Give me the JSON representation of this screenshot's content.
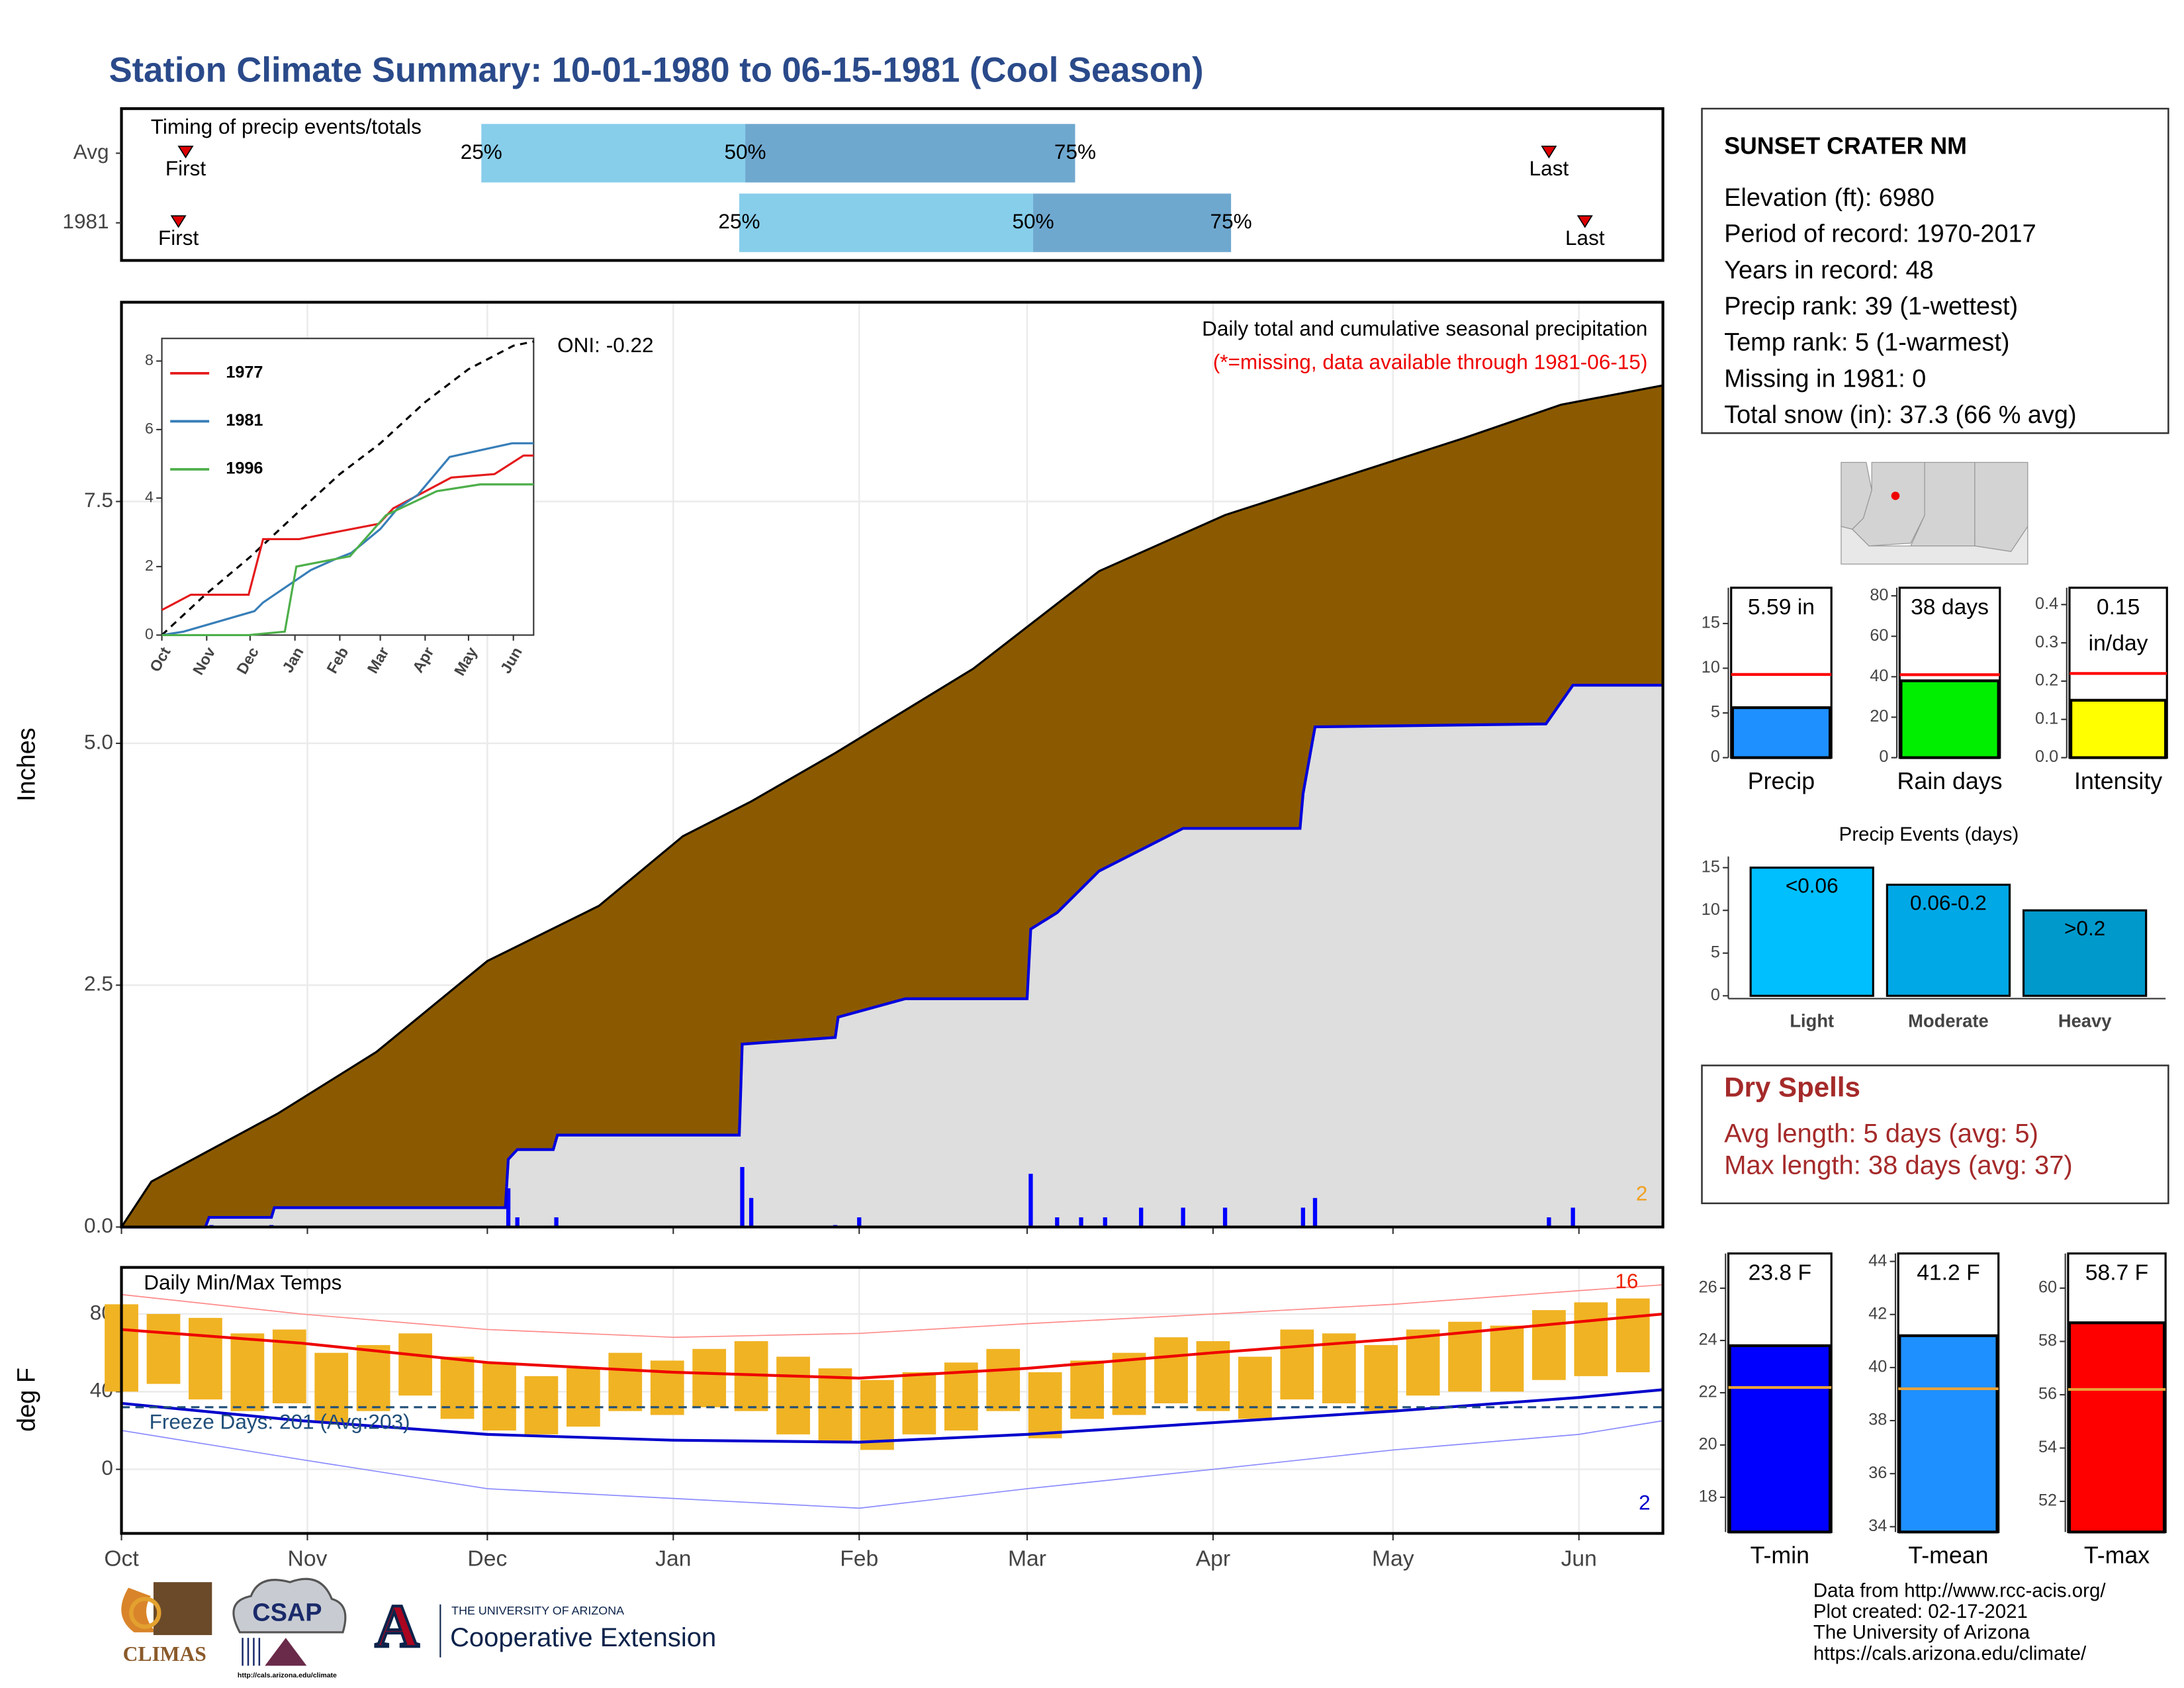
{
  "title": "Station Climate Summary: 10-01-1980 to 06-15-1981 (Cool Season)",
  "chart_data": [
    {
      "type": "timeline",
      "title": "Timing of precip events/totals",
      "categories": [
        "Avg",
        "1981"
      ],
      "xlim": [
        0,
        257
      ],
      "rows": [
        {
          "first": 10.7,
          "q25": 60,
          "q50": 104,
          "q75": 159,
          "last": 238
        },
        {
          "first": 9.5,
          "q25": 103,
          "q50": 152,
          "q75": 185,
          "last": 244
        }
      ],
      "quartile_labels": [
        "25%",
        "50%",
        "75%"
      ],
      "first_label": "First",
      "last_label": "Last",
      "colors": [
        "#87ceeb",
        "#6fa8cf"
      ],
      "marker_color": "#dd0000"
    },
    {
      "type": "area",
      "title": "Daily total and cumulative seasonal precipitation",
      "subtitle": "(*=missing, data available through 1981-06-15)",
      "annotation": "ONI: -0.22",
      "corner_note": "2",
      "y_label": "Inches",
      "xlim": [
        0,
        257
      ],
      "ylim": [
        0,
        9.56
      ],
      "yticks": [
        {
          "value": 0,
          "label": "0.0"
        },
        2.5,
        {
          "value": 5,
          "label": "5.0"
        },
        7.5
      ],
      "grid": true,
      "average": {
        "color": "#8b5a00",
        "x": [
          0,
          5,
          26,
          42.5,
          61,
          79.6,
          93.6,
          105,
          119,
          142,
          163,
          184,
          207,
          223.6,
          240,
          257
        ],
        "values": [
          0,
          0.47,
          1.17,
          1.81,
          2.75,
          3.32,
          4.04,
          4.4,
          4.9,
          5.77,
          6.78,
          7.36,
          7.82,
          8.15,
          8.5,
          8.7
        ]
      },
      "year": {
        "color": "#0000dd",
        "fill": "#dedede",
        "x": [
          0,
          14,
          14.6,
          25,
          25.5,
          64,
          64.5,
          66,
          72,
          72.7,
          103,
          103.5,
          119,
          119.5,
          130.7,
          151,
          151.6,
          156,
          163,
          170,
          177,
          196.5,
          197,
          199,
          237.5,
          242,
          257
        ],
        "values": [
          0,
          0,
          0.1,
          0.1,
          0.2,
          0.2,
          0.7,
          0.8,
          0.8,
          0.95,
          0.95,
          1.89,
          1.96,
          2.17,
          2.36,
          2.36,
          3.08,
          3.25,
          3.68,
          3.9,
          4.12,
          4.12,
          4.48,
          5.17,
          5.2,
          5.6,
          5.6
        ]
      },
      "daily": {
        "color": "#0000ff",
        "x": [
          15,
          25,
          64.5,
          66,
          72.5,
          103.5,
          105,
          119,
          123,
          151.6,
          156,
          160,
          164,
          170,
          177,
          184,
          197,
          199,
          238,
          242
        ],
        "values": [
          0.02,
          0.02,
          0.4,
          0.1,
          0.1,
          0.62,
          0.3,
          0.02,
          0.1,
          0.55,
          0.1,
          0.1,
          0.1,
          0.2,
          0.2,
          0.2,
          0.2,
          0.3,
          0.1,
          0.2
        ]
      }
    },
    {
      "type": "line",
      "xlim": [
        0,
        257
      ],
      "ylim": [
        0,
        8.66
      ],
      "yticks": [
        0,
        2,
        4,
        6,
        8
      ],
      "xticks": [
        {
          "value": 0,
          "label": "Oct"
        },
        {
          "value": 31,
          "label": "Nov"
        },
        {
          "value": 61,
          "label": "Dec"
        },
        {
          "value": 92,
          "label": "Jan"
        },
        {
          "value": 123,
          "label": "Feb"
        },
        {
          "value": 151,
          "label": "Mar"
        },
        {
          "value": 182,
          "label": "Apr"
        },
        {
          "value": 212,
          "label": "May"
        },
        {
          "value": 243,
          "label": "Jun"
        }
      ],
      "series": [
        {
          "name": "1977",
          "color": "#e41a1c",
          "x": [
            0,
            20,
            60,
            70,
            95,
            150,
            160,
            200,
            230,
            250,
            257
          ],
          "values": [
            0.73,
            1.18,
            1.18,
            2.8,
            2.8,
            3.25,
            3.7,
            4.6,
            4.7,
            5.24,
            5.24
          ]
        },
        {
          "name": "1981",
          "color": "#377eb8",
          "x": [
            0,
            15,
            64,
            70,
            103,
            119,
            131,
            151,
            163,
            177,
            199,
            242,
            257
          ],
          "values": [
            0,
            0.1,
            0.7,
            0.95,
            1.9,
            2.2,
            2.4,
            3.1,
            3.7,
            4.1,
            5.2,
            5.6,
            5.6
          ]
        },
        {
          "name": "1996",
          "color": "#4daf4a",
          "x": [
            0,
            60,
            85,
            90,
            93,
            130,
            155,
            190,
            220,
            257
          ],
          "values": [
            0,
            0,
            0.1,
            1.3,
            2.0,
            2.3,
            3.5,
            4.2,
            4.4,
            4.4
          ]
        }
      ],
      "average": {
        "color": "#000000",
        "x": [
          0,
          30,
          61,
          92,
          123,
          151,
          182,
          212,
          243,
          257
        ],
        "values": [
          0,
          1.18,
          2.28,
          3.5,
          4.7,
          5.6,
          6.8,
          7.76,
          8.45,
          8.57
        ]
      }
    },
    {
      "type": "temperature",
      "title": "Daily Min/Max Temps",
      "y_label": "deg F",
      "freeze_label": "Freeze Days: 201 (Avg:203)",
      "freeze_line": 32,
      "high_note": "16",
      "low_note": "2",
      "xlim": [
        0,
        257
      ],
      "ylim": [
        -33,
        104
      ],
      "yticks": [
        0,
        40,
        80
      ],
      "grid": true,
      "xticks": [
        {
          "value": 0,
          "label": "Oct"
        },
        {
          "value": 31,
          "label": "Nov"
        },
        {
          "value": 61,
          "label": "Dec"
        },
        {
          "value": 92,
          "label": "Jan"
        },
        {
          "value": 123,
          "label": "Feb"
        },
        {
          "value": 151,
          "label": "Mar"
        },
        {
          "value": 182,
          "label": "Apr"
        },
        {
          "value": 212,
          "label": "May"
        },
        {
          "value": 243,
          "label": "Jun"
        }
      ],
      "daily": {
        "color": "#f0b323",
        "x": [
          0,
          7,
          14,
          21,
          28,
          35,
          42,
          49,
          56,
          63,
          70,
          77,
          84,
          91,
          98,
          105,
          112,
          119,
          126,
          133,
          140,
          147,
          154,
          161,
          168,
          175,
          182,
          189,
          196,
          203,
          210,
          217,
          224,
          231,
          238,
          245,
          252
        ],
        "max": [
          85,
          80,
          78,
          70,
          72,
          60,
          64,
          70,
          58,
          55,
          48,
          52,
          60,
          56,
          62,
          66,
          58,
          52,
          46,
          50,
          55,
          62,
          50,
          56,
          60,
          68,
          66,
          58,
          72,
          70,
          64,
          72,
          76,
          74,
          82,
          86,
          88
        ],
        "min": [
          40,
          44,
          36,
          30,
          34,
          24,
          30,
          38,
          26,
          20,
          18,
          22,
          30,
          28,
          32,
          30,
          18,
          14,
          10,
          18,
          20,
          30,
          16,
          26,
          28,
          34,
          30,
          26,
          36,
          34,
          30,
          38,
          40,
          40,
          46,
          48,
          50
        ]
      },
      "avg_max": {
        "color": "#ee0000",
        "x": [
          0,
          30,
          61,
          92,
          123,
          151,
          182,
          212,
          243,
          257
        ],
        "values": [
          72,
          65,
          55,
          50,
          47,
          52,
          60,
          67,
          76,
          80
        ]
      },
      "avg_min": {
        "color": "#0000cc",
        "x": [
          0,
          30,
          61,
          92,
          123,
          151,
          182,
          212,
          243,
          257
        ],
        "values": [
          34,
          25,
          18,
          15,
          14,
          18,
          24,
          30,
          37,
          41
        ]
      },
      "record_max": {
        "color": "#ff8a8a",
        "x": [
          0,
          30,
          61,
          92,
          123,
          151,
          182,
          212,
          243,
          257
        ],
        "values": [
          90,
          80,
          72,
          68,
          70,
          75,
          80,
          85,
          92,
          95
        ]
      },
      "record_min": {
        "color": "#8a8aff",
        "x": [
          0,
          30,
          61,
          92,
          123,
          151,
          182,
          212,
          243,
          257
        ],
        "values": [
          20,
          5,
          -10,
          -15,
          -20,
          -10,
          0,
          10,
          18,
          25
        ]
      },
      "freeze_color": "#1f4e79"
    },
    {
      "type": "gauge",
      "categories": [
        "Precip"
      ],
      "values": [
        5.59
      ],
      "value_labels": [
        "5.59 in"
      ],
      "average": 9.3,
      "average_color": "#ff0000",
      "color": "#1e90ff",
      "ylim": [
        0,
        19
      ],
      "yticks": [
        0,
        5,
        10,
        15
      ]
    },
    {
      "type": "gauge",
      "categories": [
        "Rain days"
      ],
      "values": [
        38
      ],
      "value_labels": [
        "38 days"
      ],
      "average": 41,
      "average_color": "#ff0000",
      "color": "#00ee00",
      "ylim": [
        0,
        84
      ],
      "yticks": [
        0,
        20,
        40,
        60,
        80
      ]
    },
    {
      "type": "gauge",
      "categories": [
        "Intensity"
      ],
      "values": [
        0.15
      ],
      "value_labels": [
        "0.15 in/day"
      ],
      "average": 0.22,
      "average_color": "#ff0000",
      "color": "#ffff00",
      "ylim": [
        0,
        0.444
      ],
      "yticks": [
        {
          "value": 0,
          "label": "0.0"
        },
        0.1,
        0.2,
        0.3,
        0.4
      ]
    },
    {
      "type": "bar",
      "title": "Precip Events (days)",
      "categories": [
        "Light",
        "Moderate",
        "Heavy"
      ],
      "values": [
        15,
        13,
        10
      ],
      "bar_labels": [
        "<0.06",
        "0.06-0.2",
        ">0.2"
      ],
      "colors": [
        "#00bfff",
        "#00a8e6",
        "#0099cc"
      ],
      "ylim": [
        0,
        16.3
      ],
      "yticks": [
        0,
        5,
        10,
        15
      ]
    },
    {
      "type": "gauge",
      "categories": [
        "T-min"
      ],
      "values": [
        23.8
      ],
      "value_labels": [
        "23.8 F"
      ],
      "average": 22.2,
      "average_color": "#e8a33a",
      "color": "#0000ff",
      "ylim": [
        16.67,
        27.33
      ],
      "yticks": [
        18,
        20,
        22,
        24,
        26
      ]
    },
    {
      "type": "gauge",
      "categories": [
        "T-mean"
      ],
      "values": [
        41.2
      ],
      "value_labels": [
        "41.2 F"
      ],
      "average": 39.2,
      "average_color": "#e8a33a",
      "color": "#1e90ff",
      "ylim": [
        33.8,
        44.3
      ],
      "yticks": [
        34,
        36,
        38,
        40,
        42,
        44
      ]
    },
    {
      "type": "gauge",
      "categories": [
        "T-max"
      ],
      "values": [
        58.7
      ],
      "value_labels": [
        "58.7 F"
      ],
      "average": 56.2,
      "average_color": "#e8a33a",
      "color": "#ff0000",
      "ylim": [
        50.85,
        61.3
      ],
      "yticks": [
        52,
        54,
        56,
        58,
        60
      ]
    }
  ],
  "station": {
    "name": "SUNSET CRATER NM",
    "lines": [
      "Elevation (ft): 6980",
      "Period of record: 1970-2017",
      "Years in record: 48",
      "Precip rank: 39 (1-wettest)",
      "Temp rank: 5 (1-warmest)",
      "Missing in 1981: 0",
      "Total snow (in): 37.3 (66 % avg)"
    ]
  },
  "dry_spells": {
    "title": "Dry Spells",
    "lines": [
      "Avg length: 5 days (avg: 5)",
      "Max length: 38 days (avg: 37)"
    ]
  },
  "credits": [
    "Data from http://www.rcc-acis.org/",
    "Plot created: 02-17-2021",
    "The University of Arizona",
    "https://cals.arizona.edu/climate/"
  ],
  "logos": {
    "climas": "CLIMAS",
    "csap": "CSAP",
    "csap_url": "http://cals.arizona.edu/climate",
    "ua_mark": "A",
    "ua": "THE UNIVERSITY OF ARIZONA",
    "coop": "Cooperative Extension"
  }
}
